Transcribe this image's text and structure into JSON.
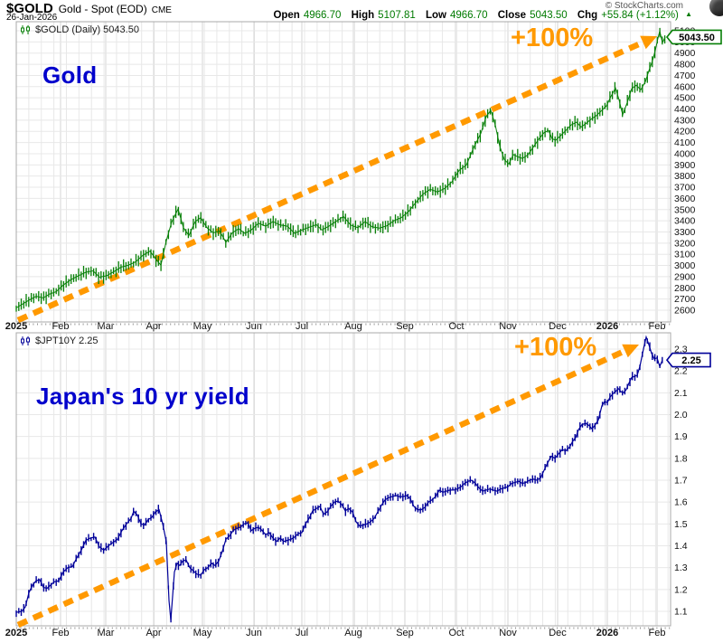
{
  "header": {
    "symbol": "$GOLD",
    "name": "Gold - Spot (EOD)",
    "exchange": "CME",
    "date": "26-Jan-2026",
    "copyright": "© StockCharts.com",
    "ohlc": {
      "open_label": "Open",
      "open": "4966.70",
      "high_label": "High",
      "high": "5107.81",
      "low_label": "Low",
      "low": "4966.70",
      "close_label": "Close",
      "close": "5043.50",
      "chg_label": "Chg",
      "chg": "+55.84 (+1.12%)",
      "direction_icon": "▲"
    }
  },
  "colors": {
    "gold_green": "#067f06",
    "value_green": "#007a00",
    "yield_navy": "#000099",
    "arrow_orange": "#FF9900",
    "annotation_blue": "#0000CC",
    "grid": "#e8e8e8",
    "grid_month": "#d4d4d4",
    "plot_border": "#a8a8a8",
    "axis_text": "#111111"
  },
  "chart_data": [
    {
      "type": "candlestick",
      "symbol": "$GOLD",
      "timeframe": "Daily",
      "legend": "$GOLD (Daily) 5043.50",
      "last_price": "5043.50",
      "last_price_value": 5043.5,
      "annotation": "Gold",
      "gain_label": "+100%",
      "series_color_ref": "gold_green",
      "x_note": "points are [x_pixel, price]; x axis spans Jan 2025 (x=18) to Feb 2026 (x=742)",
      "x_tick_labels": [
        {
          "label": "2025",
          "bold": true
        },
        {
          "label": "Feb"
        },
        {
          "label": "Mar"
        },
        {
          "label": "Apr"
        },
        {
          "label": "May"
        },
        {
          "label": "Jun"
        },
        {
          "label": "Jul"
        },
        {
          "label": "Aug"
        },
        {
          "label": "Sep"
        },
        {
          "label": "Oct"
        },
        {
          "label": "Nov"
        },
        {
          "label": "Dec"
        },
        {
          "label": "2026",
          "bold": true
        },
        {
          "label": "Feb"
        }
      ],
      "y_ticks": [
        5100,
        5000,
        4900,
        4800,
        4700,
        4600,
        4500,
        4400,
        4300,
        4200,
        4100,
        4000,
        3900,
        3800,
        3700,
        3600,
        3500,
        3400,
        3300,
        3200,
        3100,
        3000,
        2900,
        2800,
        2700,
        2600
      ],
      "y_decimals": 0,
      "ylim": [
        2485,
        5180
      ],
      "arrow": {
        "from": [
          20,
          354
        ],
        "to": [
          727,
          40
        ],
        "label": "+100%"
      },
      "points": [
        [
          18,
          2620
        ],
        [
          25,
          2655
        ],
        [
          32,
          2690
        ],
        [
          40,
          2725
        ],
        [
          48,
          2710
        ],
        [
          55,
          2745
        ],
        [
          62,
          2765
        ],
        [
          70,
          2825
        ],
        [
          78,
          2870
        ],
        [
          86,
          2905
        ],
        [
          95,
          2940
        ],
        [
          103,
          2952
        ],
        [
          110,
          2895
        ],
        [
          118,
          2908
        ],
        [
          126,
          2945
        ],
        [
          134,
          2985
        ],
        [
          142,
          3002
        ],
        [
          150,
          3032
        ],
        [
          158,
          3090
        ],
        [
          166,
          3128
        ],
        [
          172,
          3062
        ],
        [
          178,
          3002
        ],
        [
          184,
          3220
        ],
        [
          190,
          3390
        ],
        [
          197,
          3505
        ],
        [
          203,
          3338
        ],
        [
          209,
          3268
        ],
        [
          216,
          3392
        ],
        [
          222,
          3428
        ],
        [
          229,
          3338
        ],
        [
          236,
          3292
        ],
        [
          243,
          3308
        ],
        [
          250,
          3208
        ],
        [
          257,
          3292
        ],
        [
          264,
          3328
        ],
        [
          271,
          3288
        ],
        [
          278,
          3318
        ],
        [
          286,
          3378
        ],
        [
          294,
          3352
        ],
        [
          302,
          3392
        ],
        [
          310,
          3362
        ],
        [
          318,
          3352
        ],
        [
          326,
          3288
        ],
        [
          334,
          3318
        ],
        [
          342,
          3342
        ],
        [
          350,
          3365
        ],
        [
          356,
          3318
        ],
        [
          364,
          3352
        ],
        [
          372,
          3395
        ],
        [
          380,
          3438
        ],
        [
          388,
          3362
        ],
        [
          396,
          3338
        ],
        [
          404,
          3392
        ],
        [
          412,
          3345
        ],
        [
          420,
          3335
        ],
        [
          428,
          3355
        ],
        [
          436,
          3400
        ],
        [
          444,
          3428
        ],
        [
          452,
          3482
        ],
        [
          460,
          3562
        ],
        [
          468,
          3638
        ],
        [
          476,
          3682
        ],
        [
          484,
          3658
        ],
        [
          492,
          3688
        ],
        [
          500,
          3748
        ],
        [
          508,
          3852
        ],
        [
          516,
          3898
        ],
        [
          524,
          4052
        ],
        [
          532,
          4182
        ],
        [
          538,
          4332
        ],
        [
          543,
          4388
        ],
        [
          548,
          4258
        ],
        [
          553,
          4068
        ],
        [
          558,
          3948
        ],
        [
          563,
          3908
        ],
        [
          568,
          3992
        ],
        [
          573,
          3972
        ],
        [
          578,
          3958
        ],
        [
          584,
          3988
        ],
        [
          590,
          4058
        ],
        [
          596,
          4128
        ],
        [
          602,
          4188
        ],
        [
          607,
          4208
        ],
        [
          611,
          4132
        ],
        [
          615,
          4122
        ],
        [
          620,
          4158
        ],
        [
          626,
          4208
        ],
        [
          632,
          4258
        ],
        [
          638,
          4282
        ],
        [
          643,
          4238
        ],
        [
          648,
          4268
        ],
        [
          654,
          4308
        ],
        [
          660,
          4342
        ],
        [
          666,
          4388
        ],
        [
          671,
          4428
        ],
        [
          676,
          4512
        ],
        [
          681,
          4588
        ],
        [
          685,
          4482
        ],
        [
          689,
          4348
        ],
        [
          694,
          4458
        ],
        [
          699,
          4582
        ],
        [
          704,
          4612
        ],
        [
          709,
          4572
        ],
        [
          714,
          4642
        ],
        [
          718,
          4742
        ],
        [
          722,
          4832
        ],
        [
          725,
          4922
        ],
        [
          728,
          5032
        ],
        [
          730,
          5098
        ],
        [
          733,
          4992
        ],
        [
          736,
          5044
        ]
      ]
    },
    {
      "type": "candlestick",
      "symbol": "$JPT10Y",
      "timeframe": "Daily",
      "legend": "$JPT10Y 2.25",
      "last_price": "2.25",
      "last_price_value": 2.25,
      "annotation": "Japan's 10 yr yield",
      "gain_label": "+100%",
      "series_color_ref": "yield_navy",
      "x_note": "points are [x_pixel, yield %]; x axis spans Jan 2025 (x=18) to Feb 2026 (x=742)",
      "x_tick_labels": [
        {
          "label": "2025",
          "bold": true
        },
        {
          "label": "Feb"
        },
        {
          "label": "Mar"
        },
        {
          "label": "Apr"
        },
        {
          "label": "May"
        },
        {
          "label": "Jun"
        },
        {
          "label": "Jul"
        },
        {
          "label": "Aug"
        },
        {
          "label": "Sep"
        },
        {
          "label": "Oct"
        },
        {
          "label": "Nov"
        },
        {
          "label": "Dec"
        },
        {
          "label": "2026",
          "bold": true
        },
        {
          "label": "Feb"
        }
      ],
      "y_ticks": [
        2.3,
        2.2,
        2.1,
        2.0,
        1.9,
        1.8,
        1.7,
        1.6,
        1.5,
        1.4,
        1.3,
        1.2,
        1.1
      ],
      "y_decimals": 1,
      "ylim": [
        1.03,
        2.37
      ],
      "arrow": {
        "from": [
          20,
          691
        ],
        "to": [
          707,
          381
        ],
        "label": "+100%"
      },
      "points": [
        [
          18,
          1.095
        ],
        [
          24,
          1.1
        ],
        [
          28,
          1.12
        ],
        [
          32,
          1.185
        ],
        [
          36,
          1.22
        ],
        [
          40,
          1.24
        ],
        [
          44,
          1.245
        ],
        [
          48,
          1.21
        ],
        [
          52,
          1.205
        ],
        [
          56,
          1.22
        ],
        [
          60,
          1.235
        ],
        [
          65,
          1.24
        ],
        [
          70,
          1.28
        ],
        [
          75,
          1.3
        ],
        [
          80,
          1.305
        ],
        [
          85,
          1.345
        ],
        [
          90,
          1.38
        ],
        [
          95,
          1.425
        ],
        [
          100,
          1.435
        ],
        [
          105,
          1.44
        ],
        [
          110,
          1.395
        ],
        [
          115,
          1.38
        ],
        [
          120,
          1.4
        ],
        [
          125,
          1.415
        ],
        [
          130,
          1.43
        ],
        [
          135,
          1.47
        ],
        [
          140,
          1.5
        ],
        [
          145,
          1.525
        ],
        [
          148,
          1.558
        ],
        [
          152,
          1.54
        ],
        [
          156,
          1.5
        ],
        [
          160,
          1.495
        ],
        [
          164,
          1.52
        ],
        [
          168,
          1.53
        ],
        [
          172,
          1.555
        ],
        [
          176,
          1.565
        ],
        [
          180,
          1.5
        ],
        [
          184,
          1.42
        ],
        [
          187,
          1.15
        ],
        [
          189,
          1.06
        ],
        [
          191,
          1.17
        ],
        [
          193,
          1.28
        ],
        [
          196,
          1.32
        ],
        [
          199,
          1.31
        ],
        [
          202,
          1.33
        ],
        [
          206,
          1.335
        ],
        [
          210,
          1.3
        ],
        [
          214,
          1.285
        ],
        [
          218,
          1.27
        ],
        [
          222,
          1.265
        ],
        [
          226,
          1.29
        ],
        [
          230,
          1.3
        ],
        [
          234,
          1.32
        ],
        [
          238,
          1.31
        ],
        [
          242,
          1.33
        ],
        [
          246,
          1.375
        ],
        [
          250,
          1.43
        ],
        [
          254,
          1.445
        ],
        [
          258,
          1.47
        ],
        [
          262,
          1.48
        ],
        [
          266,
          1.485
        ],
        [
          270,
          1.5
        ],
        [
          274,
          1.505
        ],
        [
          278,
          1.47
        ],
        [
          282,
          1.48
        ],
        [
          286,
          1.485
        ],
        [
          290,
          1.47
        ],
        [
          294,
          1.45
        ],
        [
          298,
          1.46
        ],
        [
          302,
          1.435
        ],
        [
          306,
          1.42
        ],
        [
          310,
          1.435
        ],
        [
          314,
          1.42
        ],
        [
          318,
          1.425
        ],
        [
          322,
          1.43
        ],
        [
          326,
          1.44
        ],
        [
          330,
          1.455
        ],
        [
          334,
          1.46
        ],
        [
          338,
          1.5
        ],
        [
          342,
          1.525
        ],
        [
          346,
          1.56
        ],
        [
          350,
          1.57
        ],
        [
          354,
          1.58
        ],
        [
          358,
          1.545
        ],
        [
          362,
          1.555
        ],
        [
          366,
          1.58
        ],
        [
          370,
          1.6
        ],
        [
          374,
          1.605
        ],
        [
          378,
          1.59
        ],
        [
          382,
          1.56
        ],
        [
          386,
          1.57
        ],
        [
          390,
          1.555
        ],
        [
          394,
          1.51
        ],
        [
          398,
          1.49
        ],
        [
          402,
          1.495
        ],
        [
          406,
          1.5
        ],
        [
          410,
          1.51
        ],
        [
          414,
          1.525
        ],
        [
          418,
          1.555
        ],
        [
          422,
          1.585
        ],
        [
          426,
          1.61
        ],
        [
          430,
          1.62
        ],
        [
          434,
          1.625
        ],
        [
          438,
          1.63
        ],
        [
          442,
          1.625
        ],
        [
          446,
          1.625
        ],
        [
          450,
          1.63
        ],
        [
          454,
          1.615
        ],
        [
          458,
          1.58
        ],
        [
          462,
          1.565
        ],
        [
          466,
          1.565
        ],
        [
          470,
          1.575
        ],
        [
          474,
          1.6
        ],
        [
          478,
          1.61
        ],
        [
          482,
          1.625
        ],
        [
          486,
          1.655
        ],
        [
          490,
          1.645
        ],
        [
          494,
          1.65
        ],
        [
          498,
          1.655
        ],
        [
          502,
          1.655
        ],
        [
          506,
          1.66
        ],
        [
          510,
          1.67
        ],
        [
          514,
          1.685
        ],
        [
          518,
          1.695
        ],
        [
          522,
          1.7
        ],
        [
          526,
          1.685
        ],
        [
          530,
          1.665
        ],
        [
          534,
          1.65
        ],
        [
          538,
          1.655
        ],
        [
          542,
          1.66
        ],
        [
          546,
          1.655
        ],
        [
          550,
          1.65
        ],
        [
          554,
          1.66
        ],
        [
          558,
          1.665
        ],
        [
          562,
          1.67
        ],
        [
          566,
          1.685
        ],
        [
          570,
          1.69
        ],
        [
          574,
          1.695
        ],
        [
          578,
          1.685
        ],
        [
          582,
          1.69
        ],
        [
          586,
          1.7
        ],
        [
          590,
          1.705
        ],
        [
          594,
          1.7
        ],
        [
          598,
          1.71
        ],
        [
          602,
          1.745
        ],
        [
          606,
          1.78
        ],
        [
          610,
          1.81
        ],
        [
          614,
          1.8
        ],
        [
          618,
          1.82
        ],
        [
          622,
          1.84
        ],
        [
          626,
          1.835
        ],
        [
          630,
          1.85
        ],
        [
          634,
          1.88
        ],
        [
          637,
          1.895
        ],
        [
          640,
          1.93
        ],
        [
          644,
          1.955
        ],
        [
          648,
          1.96
        ],
        [
          652,
          1.95
        ],
        [
          655,
          1.935
        ],
        [
          658,
          1.95
        ],
        [
          662,
          1.975
        ],
        [
          666,
          2.04
        ],
        [
          669,
          2.06
        ],
        [
          672,
          2.055
        ],
        [
          675,
          2.08
        ],
        [
          678,
          2.095
        ],
        [
          681,
          2.105
        ],
        [
          684,
          2.12
        ],
        [
          687,
          2.105
        ],
        [
          690,
          2.1
        ],
        [
          693,
          2.115
        ],
        [
          696,
          2.145
        ],
        [
          699,
          2.17
        ],
        [
          702,
          2.175
        ],
        [
          705,
          2.18
        ],
        [
          708,
          2.22
        ],
        [
          712,
          2.3
        ],
        [
          715,
          2.355
        ],
        [
          718,
          2.32
        ],
        [
          721,
          2.28
        ],
        [
          724,
          2.255
        ],
        [
          727,
          2.26
        ],
        [
          730,
          2.22
        ],
        [
          733,
          2.25
        ]
      ]
    }
  ]
}
